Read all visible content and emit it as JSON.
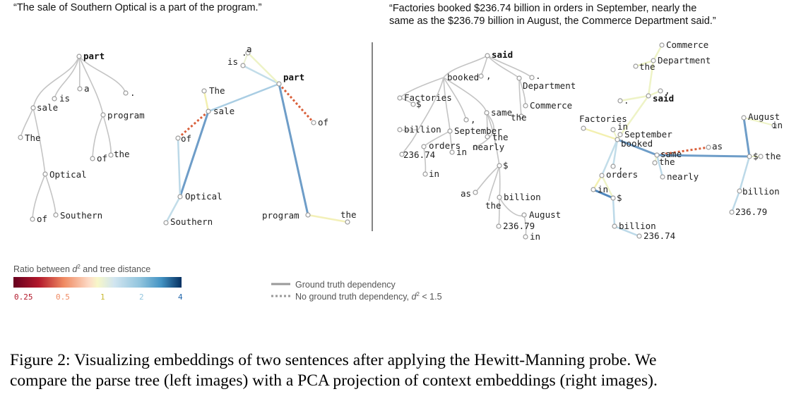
{
  "figure": {
    "quote_left": "“The sale of Southern Optical is a part of the program.”",
    "quote_right_line1": "“Factories booked $236.74 billion in orders in September, nearly the",
    "quote_right_line2": "same as the $236.79 billion in August, the Commerce Department said.”",
    "tree1_words": {
      "part": "part",
      "is": "is",
      "a": "a",
      "period": ".",
      "sale": "sale",
      "program": "program",
      "The": "The",
      "of_prog": "of",
      "the_prog": "the",
      "Optical": "Optical",
      "of_opt": "of",
      "Southern": "Southern"
    },
    "emb1_words": {
      "is": "is",
      "period": ".",
      "a": "a",
      "part": "part",
      "The": "The",
      "sale": "sale",
      "of_sale": "of",
      "of_part": "of",
      "Optical": "Optical",
      "Southern": "Southern",
      "program": "program",
      "the": "the"
    },
    "tree2_words": {
      "said": "said",
      "booked": "booked",
      "comma": ",",
      "period": ".",
      "Department": "Department",
      "Factories": "Factories",
      "dollar": "$",
      "the_dep": "the",
      "Commerce": "Commerce",
      "comma2": ",",
      "same": "same",
      "billion": "billion",
      "September": "September",
      "the_same": "the",
      "orders": "orders",
      "nearly": "nearly",
      "n23674": "236.74",
      "in_sep": "in",
      "in_bil": "in",
      "dollar2": "$",
      "as": "as",
      "billion2": "billion",
      "the2": "the",
      "August": "August",
      "n23679": "236.79",
      "in_aug": "in"
    },
    "emb2_words": {
      "Commerce": "Commerce",
      "the": "the",
      "Department": "Department",
      "period": ".",
      "comma": ",",
      "said": "said",
      "Factories": "Factories",
      "in_top": "in",
      "September": "September",
      "booked": "booked",
      "August": "August",
      "in_aug": "in",
      "as": "as",
      "same": "same",
      "the_same": "the",
      "comma2": ",",
      "dollar": "$",
      "the_r": "the",
      "orders": "orders",
      "nearly": "nearly",
      "in_ord": "in",
      "dollar2": "$",
      "billion_r": "billion",
      "n23679": "236.79",
      "billion": "billion",
      "n23674": "236.74"
    },
    "colorbar": {
      "title_prefix": "Ratio between",
      "d2": "d",
      "d2_sup": "2",
      "title_suffix": "and tree distance",
      "ticks": [
        "0.25",
        "0.5",
        "1",
        "2",
        "4"
      ],
      "tick_colors": [
        "#b2182b",
        "#ef8a62",
        "#c8b830",
        "#92c5de",
        "#2166ac"
      ]
    },
    "legend": {
      "solid_label": "Ground truth dependency",
      "dashed_label_prefix": "No ground truth dependency,",
      "dashed_d": "d",
      "dashed_sup": "2",
      "dashed_suffix": "< 1.5"
    }
  },
  "caption": {
    "line1": "Figure 2: Visualizing embeddings of two sentences after applying the Hewitt-Manning probe. We",
    "line2": "compare the parse tree (left images) with a PCA projection of context embeddings (right images)."
  }
}
